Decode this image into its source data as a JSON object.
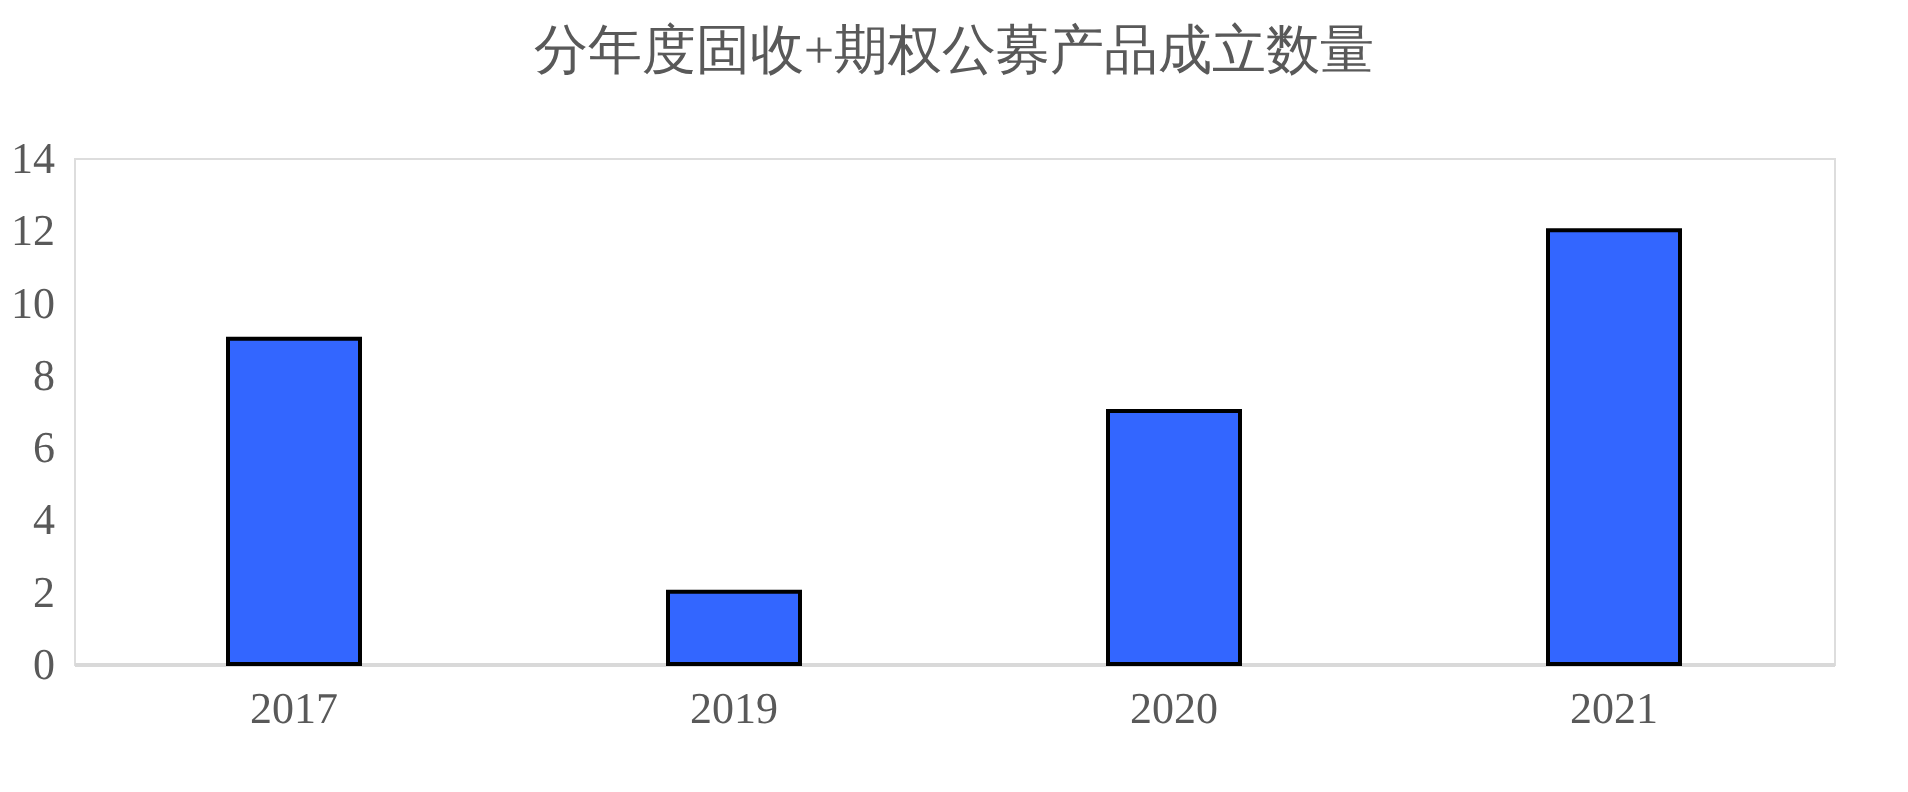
{
  "chart_data": {
    "type": "bar",
    "title": "分年度固收+期权公募产品成立数量",
    "categories": [
      "2017",
      "2019",
      "2020",
      "2021"
    ],
    "values": [
      9,
      2,
      7,
      12
    ],
    "color": "#3366ff",
    "ylim": [
      0,
      14
    ],
    "yticks": [
      0,
      2,
      4,
      6,
      8,
      10,
      12,
      14
    ],
    "grid": false
  }
}
